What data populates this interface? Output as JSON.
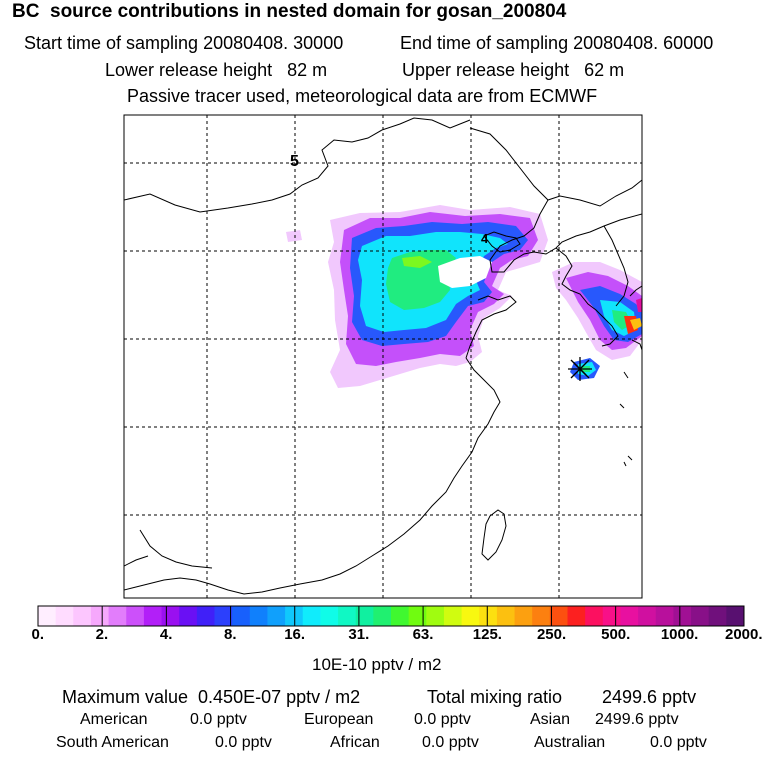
{
  "header": {
    "title": "BC  source contributions in nested domain for gosan_200804",
    "start_time": "Start time of sampling 20080408. 30000",
    "end_time": "End time of sampling 20080408. 60000",
    "lower_height": "Lower release height   82 m",
    "upper_height": "Upper release height   62 m",
    "tracer_note": "Passive tracer used, meteorological data are from ECMWF"
  },
  "map": {
    "contour_labels": [
      "5",
      "4"
    ],
    "receptor_marker": "star-marker"
  },
  "colorbar": {
    "ticks": [
      "0.",
      "2.",
      "4.",
      "8.",
      "16.",
      "31.",
      "63.",
      "125.",
      "250.",
      "500.",
      "1000.",
      "2000."
    ],
    "unit_label": "10E-10 pptv / m2",
    "colors": [
      "#ffeeff",
      "#ffdcff",
      "#fcc6fe",
      "#f6a8fc",
      "#e27dfb",
      "#cc50fa",
      "#b21ff8",
      "#9a10f0",
      "#6a10f4",
      "#4020f8",
      "#2c40fc",
      "#1860fc",
      "#1080fc",
      "#10a0fc",
      "#10c8fc",
      "#10ecfc",
      "#10fce8",
      "#10f8c4",
      "#10f0a0",
      "#20f070",
      "#40f830",
      "#70fc10",
      "#a0fc10",
      "#d0fc10",
      "#f8f810",
      "#fce010",
      "#fcc010",
      "#fca010",
      "#fc8010",
      "#fc5010",
      "#fc2020",
      "#fc1060",
      "#f81088",
      "#e810a0",
      "#d010a0",
      "#b8109c",
      "#a01094",
      "#881088",
      "#70107c",
      "#581070"
    ]
  },
  "stats": {
    "max_label": "Maximum value  0.450E-07 pptv / m2",
    "total_label": "Total mixing ratio",
    "total_value": "2499.6 pptv",
    "regions": [
      {
        "name": "American",
        "value": "0.0 pptv"
      },
      {
        "name": "European",
        "value": "0.0 pptv"
      },
      {
        "name": "Asian",
        "value": "2499.6 pptv"
      },
      {
        "name": "South American",
        "value": "0.0 pptv"
      },
      {
        "name": "African",
        "value": "0.0 pptv"
      },
      {
        "name": "Australian",
        "value": "0.0 pptv"
      }
    ]
  }
}
